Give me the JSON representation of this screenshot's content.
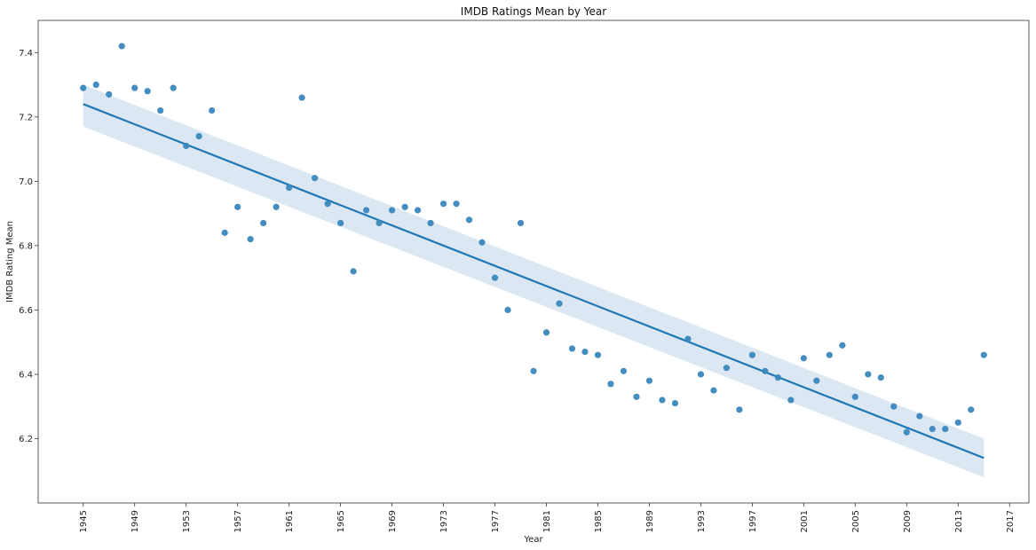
{
  "chart_data": {
    "type": "scatter",
    "title": "IMDB Ratings Mean by Year",
    "xlabel": "Year",
    "ylabel": "IMDB Rating Mean",
    "xlim": [
      1941.5,
      2018.5
    ],
    "ylim": [
      6.0,
      7.5
    ],
    "x_ticks": [
      1945,
      1949,
      1953,
      1957,
      1961,
      1965,
      1969,
      1973,
      1977,
      1981,
      1985,
      1989,
      1993,
      1997,
      2001,
      2005,
      2009,
      2013,
      2017
    ],
    "y_ticks": [
      6.2,
      6.4,
      6.6,
      6.8,
      7.0,
      7.2,
      7.4
    ],
    "grid": false,
    "point_color": "#3a87bd",
    "line_color": "#1f77b4",
    "band_color": "#dbe7f3",
    "points": {
      "x": [
        1945,
        1946,
        1947,
        1948,
        1949,
        1950,
        1951,
        1952,
        1953,
        1954,
        1955,
        1956,
        1957,
        1958,
        1959,
        1960,
        1961,
        1962,
        1963,
        1964,
        1965,
        1966,
        1967,
        1968,
        1969,
        1970,
        1971,
        1972,
        1973,
        1974,
        1975,
        1976,
        1977,
        1978,
        1979,
        1980,
        1981,
        1982,
        1983,
        1984,
        1985,
        1986,
        1987,
        1988,
        1989,
        1990,
        1991,
        1992,
        1993,
        1994,
        1995,
        1996,
        1997,
        1998,
        1999,
        2000,
        2001,
        2002,
        2003,
        2004,
        2005,
        2006,
        2007,
        2008,
        2009,
        2010,
        2011,
        2012,
        2013,
        2014,
        2015
      ],
      "y": [
        7.29,
        7.3,
        7.27,
        7.42,
        7.29,
        7.28,
        7.22,
        7.29,
        7.11,
        7.14,
        7.22,
        6.84,
        6.92,
        6.82,
        6.87,
        6.92,
        6.98,
        7.26,
        7.01,
        6.93,
        6.87,
        6.72,
        6.91,
        6.87,
        6.91,
        6.92,
        6.91,
        6.87,
        6.93,
        6.93,
        6.88,
        6.81,
        6.7,
        6.6,
        6.87,
        6.41,
        6.53,
        6.62,
        6.48,
        6.47,
        6.46,
        6.37,
        6.41,
        6.33,
        6.38,
        6.32,
        6.31,
        6.51,
        6.4,
        6.35,
        6.42,
        6.29,
        6.46,
        6.41,
        6.39,
        6.32,
        6.45,
        6.38,
        6.46,
        6.49,
        6.33,
        6.4,
        6.39,
        6.3,
        6.22,
        6.27,
        6.23,
        6.23,
        6.25,
        6.29,
        6.46
      ]
    },
    "regression": {
      "x": [
        1945,
        2015
      ],
      "y": [
        7.24,
        6.14
      ],
      "ci_lower": [
        7.17,
        6.08
      ],
      "ci_upper": [
        7.3,
        6.2
      ]
    }
  }
}
